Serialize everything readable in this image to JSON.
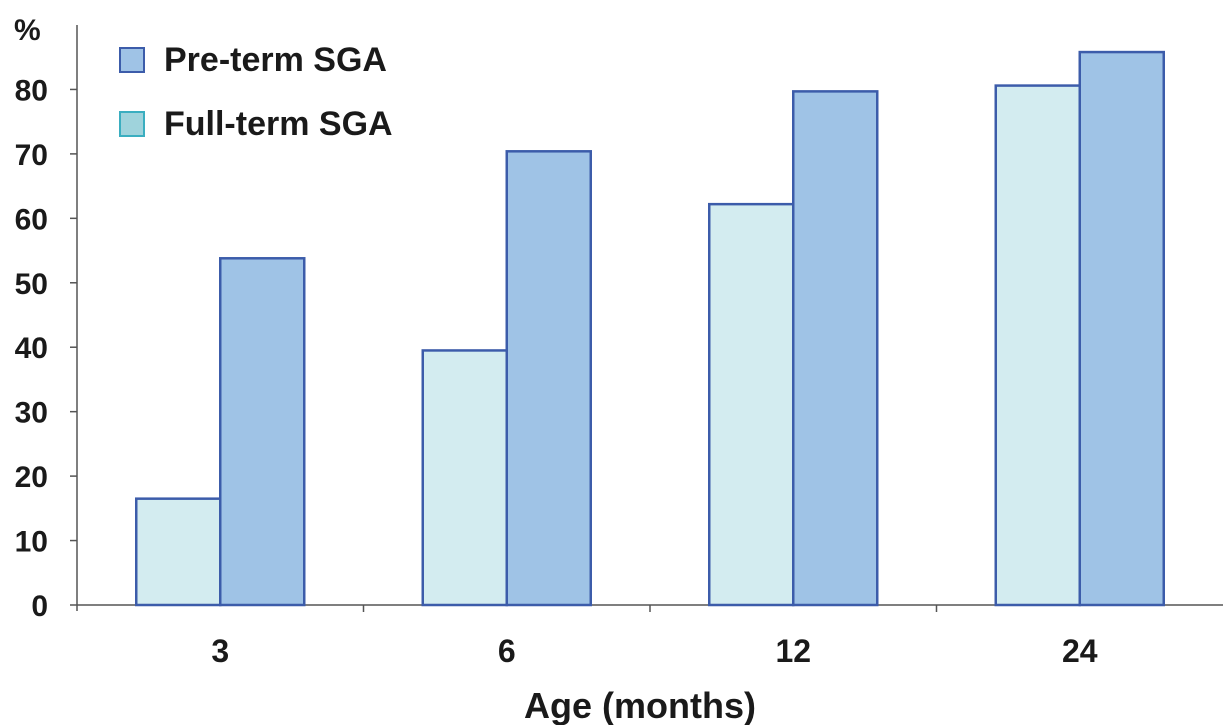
{
  "chart_data": {
    "type": "bar",
    "ylabel": "%",
    "xlabel": "Age (months)",
    "categories": [
      "3",
      "6",
      "12",
      "24"
    ],
    "ylim": [
      0,
      90
    ],
    "yticks": [
      0,
      10,
      20,
      30,
      40,
      50,
      60,
      70,
      80
    ],
    "yticks_labels": [
      "0",
      "10",
      "20",
      "30",
      "40",
      "50",
      "60",
      "70",
      "80"
    ],
    "grid": false,
    "legend_position": "top-left",
    "series": [
      {
        "name": "Full-term SGA",
        "values": [
          16.5,
          39.5,
          62.2,
          80.6
        ],
        "fill": "#d3ecf0",
        "legend_swatch": "#9fd3dc",
        "legend_swatch_stroke": "#3aaec0"
      },
      {
        "name": "Pre-term SGA",
        "values": [
          53.8,
          70.4,
          79.7,
          85.8
        ],
        "fill": "#9fc3e6",
        "legend_swatch": "#9fc3e6",
        "legend_swatch_stroke": "#3c5caa"
      }
    ],
    "legend_order": [
      "Pre-term SGA",
      "Full-term SGA"
    ],
    "bar_stroke": "#3c5caa",
    "axis_color": "#555555"
  }
}
